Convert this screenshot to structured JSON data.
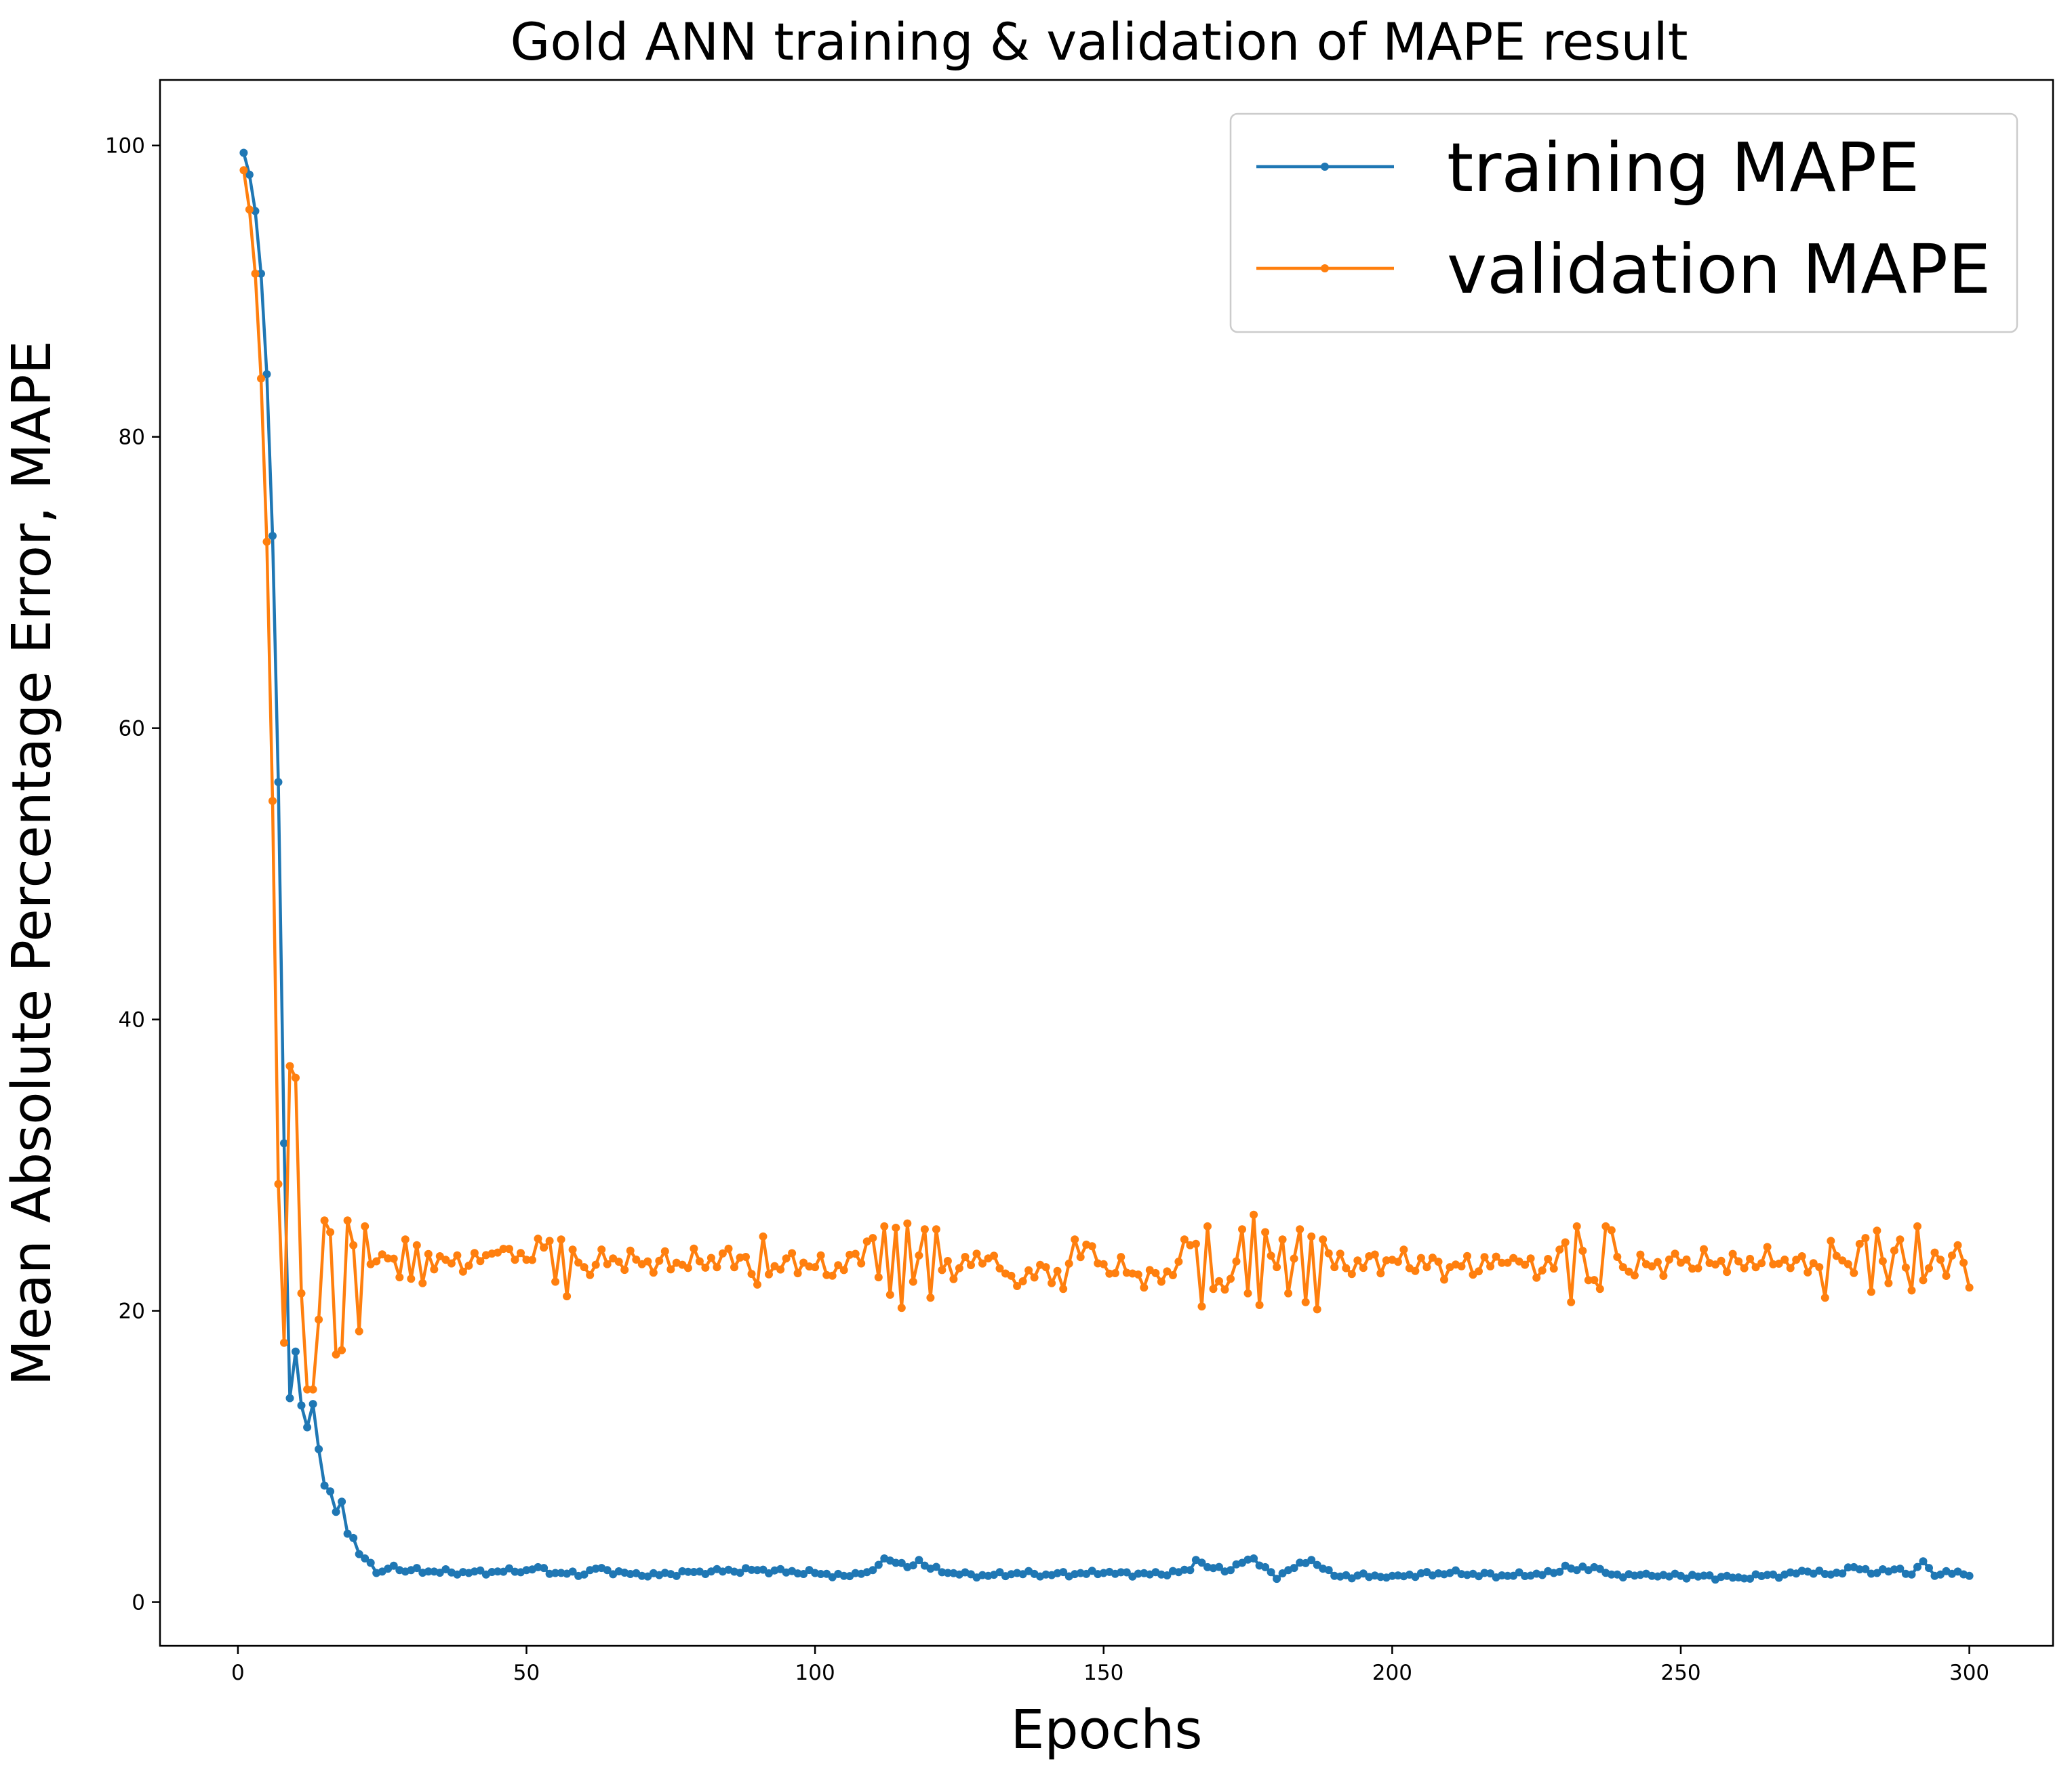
{
  "chart_data": {
    "type": "line",
    "title": "Gold ANN training & validation of MAPE result",
    "xlabel": "Epochs",
    "ylabel": "Mean Absolute Percentage Error, MAPE",
    "xlim": [
      -13.5,
      314.5
    ],
    "ylim": [
      -3,
      104.5
    ],
    "xticks": [
      0,
      50,
      100,
      150,
      200,
      250,
      300
    ],
    "yticks": [
      0,
      20,
      40,
      60,
      80,
      100
    ],
    "grid": false,
    "legend_position": "top-right",
    "series": [
      {
        "name": "training MAPE",
        "color": "#1f77b4",
        "marker": "circle",
        "keypoints": [
          [
            1,
            99.5
          ],
          [
            2,
            98.0
          ],
          [
            3,
            95.5
          ],
          [
            4,
            91.2
          ],
          [
            5,
            84.3
          ],
          [
            6,
            73.2
          ],
          [
            7,
            56.3
          ],
          [
            8,
            31.5
          ],
          [
            9,
            14.0
          ],
          [
            10,
            17.2
          ],
          [
            11,
            13.5
          ],
          [
            12,
            12.0
          ],
          [
            13,
            13.6
          ],
          [
            14,
            10.5
          ],
          [
            15,
            8.0
          ],
          [
            16,
            7.6
          ],
          [
            17,
            6.2
          ],
          [
            18,
            6.9
          ],
          [
            19,
            4.7
          ],
          [
            20,
            4.4
          ],
          [
            21,
            3.3
          ],
          [
            22,
            3.0
          ],
          [
            23,
            2.7
          ],
          [
            24,
            2.0
          ],
          [
            25,
            2.1
          ],
          [
            26,
            2.3
          ],
          [
            27,
            2.5
          ],
          [
            28,
            2.2
          ],
          [
            30,
            2.2
          ],
          [
            34,
            2.1
          ],
          [
            40,
            2.0
          ],
          [
            50,
            2.2
          ],
          [
            52,
            2.4
          ],
          [
            55,
            2.0
          ],
          [
            60,
            1.9
          ],
          [
            62,
            2.3
          ],
          [
            70,
            1.8
          ],
          [
            80,
            2.1
          ],
          [
            90,
            2.2
          ],
          [
            100,
            2.0
          ],
          [
            105,
            1.8
          ],
          [
            110,
            2.2
          ],
          [
            112,
            3.0
          ],
          [
            114,
            2.7
          ],
          [
            116,
            2.4
          ],
          [
            118,
            2.9
          ],
          [
            120,
            2.3
          ],
          [
            125,
            1.9
          ],
          [
            130,
            1.8
          ],
          [
            135,
            2.0
          ],
          [
            140,
            1.9
          ],
          [
            150,
            2.0
          ],
          [
            160,
            1.9
          ],
          [
            165,
            2.2
          ],
          [
            166,
            2.9
          ],
          [
            168,
            2.4
          ],
          [
            172,
            2.2
          ],
          [
            174,
            2.7
          ],
          [
            176,
            3.0
          ],
          [
            178,
            2.4
          ],
          [
            180,
            1.6
          ],
          [
            182,
            2.2
          ],
          [
            186,
            2.9
          ],
          [
            188,
            2.3
          ],
          [
            190,
            1.8
          ],
          [
            200,
            1.8
          ],
          [
            210,
            2.0
          ],
          [
            220,
            1.8
          ],
          [
            228,
            2.0
          ],
          [
            230,
            2.5
          ],
          [
            232,
            2.2
          ],
          [
            235,
            2.4
          ],
          [
            238,
            1.9
          ],
          [
            245,
            1.8
          ],
          [
            250,
            1.8
          ],
          [
            260,
            1.7
          ],
          [
            268,
            1.9
          ],
          [
            272,
            2.1
          ],
          [
            276,
            1.9
          ],
          [
            280,
            2.4
          ],
          [
            284,
            2.0
          ],
          [
            288,
            2.3
          ],
          [
            290,
            1.9
          ],
          [
            292,
            2.8
          ],
          [
            294,
            1.8
          ],
          [
            298,
            2.1
          ],
          [
            300,
            1.8
          ]
        ]
      },
      {
        "name": "validation MAPE",
        "color": "#ff7f0e",
        "marker": "circle",
        "keypoints": [
          [
            1,
            98.3
          ],
          [
            2,
            95.6
          ],
          [
            3,
            91.2
          ],
          [
            4,
            84.0
          ],
          [
            5,
            72.8
          ],
          [
            6,
            55.0
          ],
          [
            7,
            28.7
          ],
          [
            8,
            17.8
          ],
          [
            9,
            36.8
          ],
          [
            10,
            36.0
          ],
          [
            11,
            21.2
          ],
          [
            12,
            14.6
          ],
          [
            13,
            14.6
          ],
          [
            14,
            19.4
          ],
          [
            15,
            26.2
          ],
          [
            16,
            25.4
          ],
          [
            17,
            17.0
          ],
          [
            18,
            17.3
          ],
          [
            19,
            26.2
          ],
          [
            20,
            24.5
          ],
          [
            21,
            18.6
          ],
          [
            22,
            25.8
          ],
          [
            23,
            23.2
          ],
          [
            24,
            23.4
          ],
          [
            26,
            23.6
          ],
          [
            28,
            22.3
          ],
          [
            29,
            24.9
          ],
          [
            30,
            22.2
          ],
          [
            31,
            24.5
          ],
          [
            32,
            21.9
          ],
          [
            33,
            23.9
          ],
          [
            36,
            23.5
          ],
          [
            40,
            23.1
          ],
          [
            45,
            24.0
          ],
          [
            50,
            23.5
          ],
          [
            54,
            24.8
          ],
          [
            55,
            22.0
          ],
          [
            56,
            24.9
          ],
          [
            57,
            21.0
          ],
          [
            58,
            24.2
          ],
          [
            60,
            23.0
          ],
          [
            65,
            23.6
          ],
          [
            70,
            23.2
          ],
          [
            80,
            23.4
          ],
          [
            88,
            23.7
          ],
          [
            90,
            21.8
          ],
          [
            91,
            25.1
          ],
          [
            92,
            22.5
          ],
          [
            95,
            23.6
          ],
          [
            100,
            23.0
          ],
          [
            105,
            22.8
          ],
          [
            110,
            25.0
          ],
          [
            111,
            22.3
          ],
          [
            112,
            25.8
          ],
          [
            113,
            21.1
          ],
          [
            114,
            25.7
          ],
          [
            115,
            20.2
          ],
          [
            116,
            26.0
          ],
          [
            117,
            22.0
          ],
          [
            118,
            23.8
          ],
          [
            119,
            25.6
          ],
          [
            120,
            20.9
          ],
          [
            121,
            25.6
          ],
          [
            122,
            22.8
          ],
          [
            130,
            23.6
          ],
          [
            135,
            21.7
          ],
          [
            140,
            23.0
          ],
          [
            143,
            21.5
          ],
          [
            145,
            24.9
          ],
          [
            150,
            23.2
          ],
          [
            160,
            22.0
          ],
          [
            165,
            24.5
          ],
          [
            166,
            24.6
          ],
          [
            167,
            20.3
          ],
          [
            168,
            25.8
          ],
          [
            169,
            21.5
          ],
          [
            172,
            22.2
          ],
          [
            174,
            25.6
          ],
          [
            175,
            21.2
          ],
          [
            176,
            26.6
          ],
          [
            177,
            20.4
          ],
          [
            178,
            25.4
          ],
          [
            180,
            23.0
          ],
          [
            181,
            24.9
          ],
          [
            182,
            21.2
          ],
          [
            184,
            25.6
          ],
          [
            185,
            20.6
          ],
          [
            186,
            25.1
          ],
          [
            187,
            20.1
          ],
          [
            188,
            24.9
          ],
          [
            190,
            23.0
          ],
          [
            200,
            23.5
          ],
          [
            210,
            23.0
          ],
          [
            220,
            23.3
          ],
          [
            228,
            22.9
          ],
          [
            230,
            24.7
          ],
          [
            231,
            20.6
          ],
          [
            232,
            25.8
          ],
          [
            234,
            22.1
          ],
          [
            236,
            21.5
          ],
          [
            237,
            25.8
          ],
          [
            240,
            23.0
          ],
          [
            250,
            23.3
          ],
          [
            260,
            23.4
          ],
          [
            270,
            23.5
          ],
          [
            274,
            23.0
          ],
          [
            275,
            20.9
          ],
          [
            276,
            24.8
          ],
          [
            280,
            22.6
          ],
          [
            282,
            25.0
          ],
          [
            283,
            21.3
          ],
          [
            284,
            25.5
          ],
          [
            286,
            21.9
          ],
          [
            288,
            24.9
          ],
          [
            290,
            21.4
          ],
          [
            291,
            25.8
          ],
          [
            292,
            22.1
          ],
          [
            294,
            24.0
          ],
          [
            296,
            22.4
          ],
          [
            298,
            24.5
          ],
          [
            299,
            23.3
          ],
          [
            300,
            21.6
          ]
        ]
      }
    ]
  }
}
